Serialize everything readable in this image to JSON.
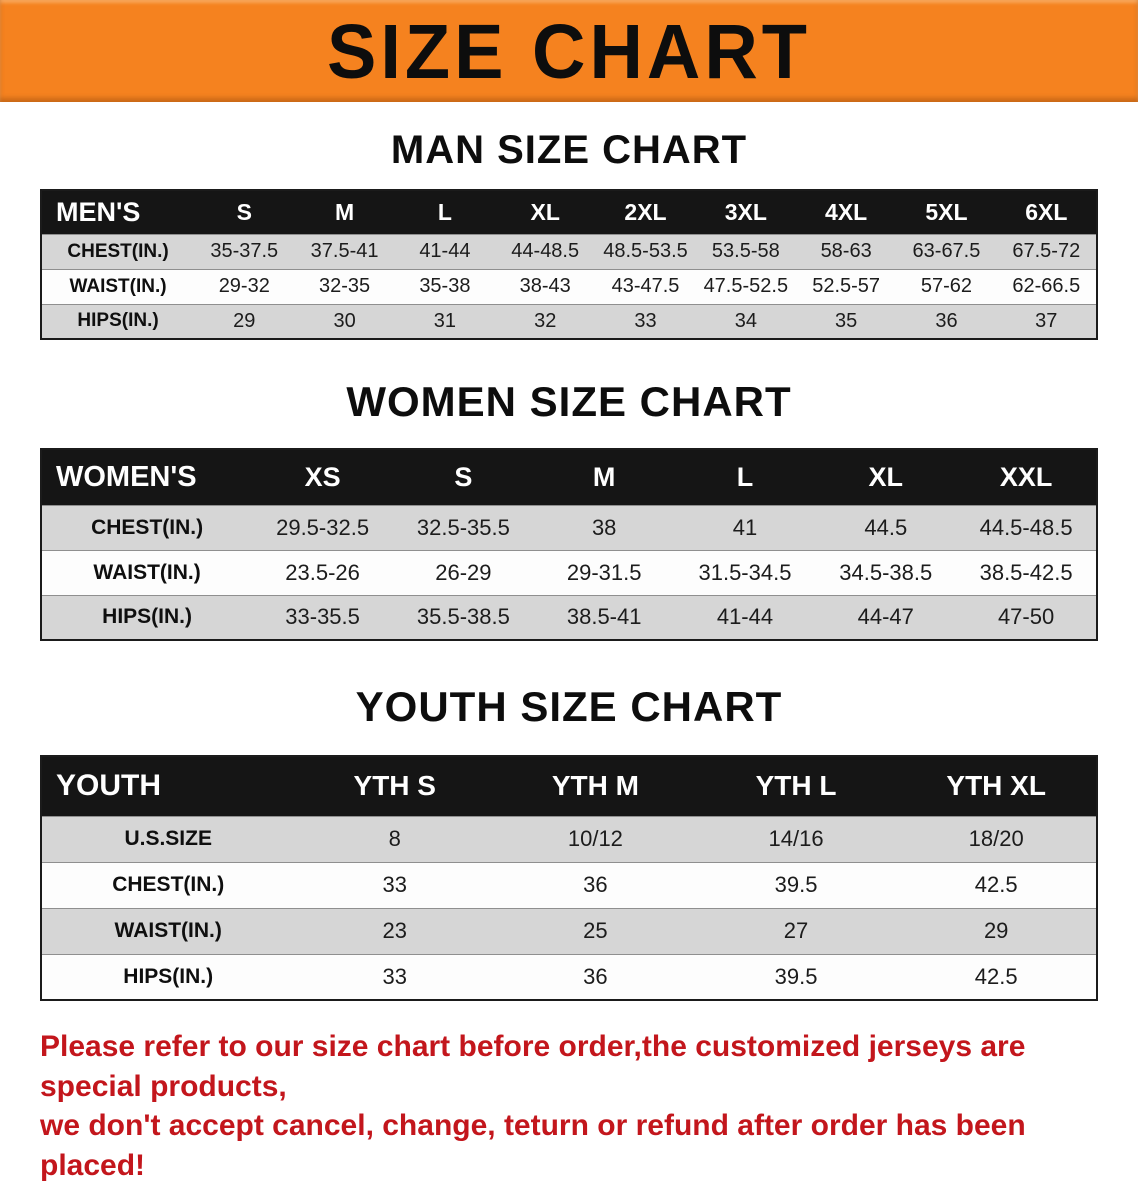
{
  "banner": {
    "title": "SIZE CHART"
  },
  "sections": [
    {
      "id": "mens",
      "heading": "MAN SIZE CHART",
      "corner_label": "MEN'S",
      "columns": [
        "S",
        "M",
        "L",
        "XL",
        "2XL",
        "3XL",
        "4XL",
        "5XL",
        "6XL"
      ],
      "rows": [
        {
          "label": "CHEST(IN.)",
          "values": [
            "35-37.5",
            "37.5-41",
            "41-44",
            "44-48.5",
            "48.5-53.5",
            "53.5-58",
            "58-63",
            "63-67.5",
            "67.5-72"
          ]
        },
        {
          "label": "WAIST(IN.)",
          "values": [
            "29-32",
            "32-35",
            "35-38",
            "38-43",
            "43-47.5",
            "47.5-52.5",
            "52.5-57",
            "57-62",
            "62-66.5"
          ]
        },
        {
          "label": "HIPS(IN.)",
          "values": [
            "29",
            "30",
            "31",
            "32",
            "33",
            "34",
            "35",
            "36",
            "37"
          ]
        }
      ]
    },
    {
      "id": "womens",
      "heading": "WOMEN SIZE CHART",
      "corner_label": "WOMEN'S",
      "columns": [
        "XS",
        "S",
        "M",
        "L",
        "XL",
        "XXL"
      ],
      "rows": [
        {
          "label": "CHEST(IN.)",
          "values": [
            "29.5-32.5",
            "32.5-35.5",
            "38",
            "41",
            "44.5",
            "44.5-48.5"
          ]
        },
        {
          "label": "WAIST(IN.)",
          "values": [
            "23.5-26",
            "26-29",
            "29-31.5",
            "31.5-34.5",
            "34.5-38.5",
            "38.5-42.5"
          ]
        },
        {
          "label": "HIPS(IN.)",
          "values": [
            "33-35.5",
            "35.5-38.5",
            "38.5-41",
            "41-44",
            "44-47",
            "47-50"
          ]
        }
      ]
    },
    {
      "id": "youth",
      "heading": "YOUTH SIZE CHART",
      "corner_label": "YOUTH",
      "columns": [
        "YTH S",
        "YTH M",
        "YTH L",
        "YTH XL"
      ],
      "rows": [
        {
          "label": "U.S.SIZE",
          "values": [
            "8",
            "10/12",
            "14/16",
            "18/20"
          ]
        },
        {
          "label": "CHEST(IN.)",
          "values": [
            "33",
            "36",
            "39.5",
            "42.5"
          ]
        },
        {
          "label": "WAIST(IN.)",
          "values": [
            "23",
            "25",
            "27",
            "29"
          ]
        },
        {
          "label": "HIPS(IN.)",
          "values": [
            "33",
            "36",
            "39.5",
            "42.5"
          ]
        }
      ]
    }
  ],
  "footer": {
    "lines": [
      "Please refer to our size chart before order,the customized jerseys are special products,",
      "we don't accept cancel, change, teturn or refund after order has been placed!"
    ]
  },
  "colors": {
    "banner_bg": "#f5821f",
    "header_bg": "#151515",
    "row_gray": "#d6d6d6",
    "footer_red": "#c3161c"
  }
}
